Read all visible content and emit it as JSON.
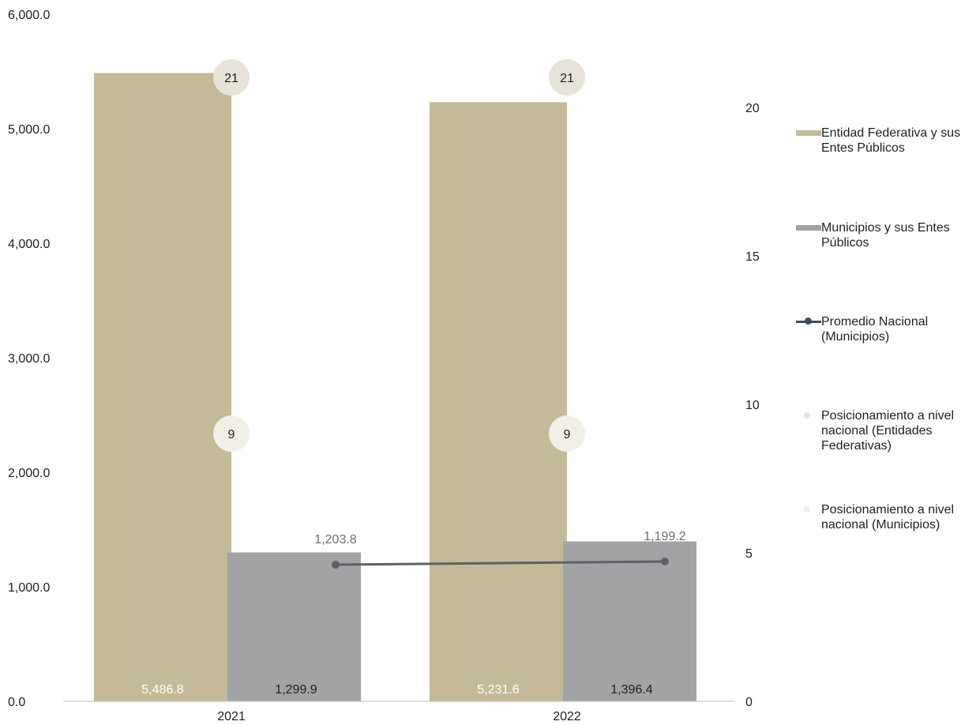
{
  "chart_data": {
    "type": "bar",
    "categories": [
      "2021",
      "2022"
    ],
    "ylim": [
      0,
      6000
    ],
    "y2lim": [
      0,
      24
    ],
    "y_ticks": [
      "0.0",
      "1,000.0",
      "2,000.0",
      "3,000.0",
      "4,000.0",
      "5,000.0",
      "6,000.0"
    ],
    "y2_ticks": [
      "0",
      "5",
      "10",
      "15",
      "20"
    ],
    "series": [
      {
        "name": "Entidad Federativa y sus Entes Públicos",
        "kind": "bar",
        "color": "#c4ba98",
        "values": [
          5486.8,
          5231.6
        ],
        "labels": [
          "5,486.8",
          "5,231.6"
        ]
      },
      {
        "name": "Municipios y sus Entes Públicos",
        "kind": "bar",
        "color": "#a2a3a5",
        "values": [
          1299.9,
          1396.4
        ],
        "labels": [
          "1,299.9",
          "1,396.4"
        ]
      },
      {
        "name": "Promedio Nacional (Municipios)",
        "kind": "line",
        "color": "#5d6066",
        "values": [
          1203.8,
          1199.2
        ],
        "labels": [
          "1,203.8",
          "1,199.2"
        ]
      },
      {
        "name": "Posicionamiento a nivel nacional (Entidades Federativas)",
        "kind": "marker",
        "axis": "right",
        "color": "#e7e3d9",
        "values": [
          21,
          21
        ],
        "labels": [
          "21",
          "21"
        ]
      },
      {
        "name": "Posicionamiento a nivel nacional (Municipios)",
        "kind": "marker",
        "axis": "right",
        "color": "#f1efe8",
        "values": [
          9,
          9
        ],
        "labels": [
          "9",
          "9"
        ]
      }
    ],
    "legend_position": "right",
    "grid": false
  }
}
